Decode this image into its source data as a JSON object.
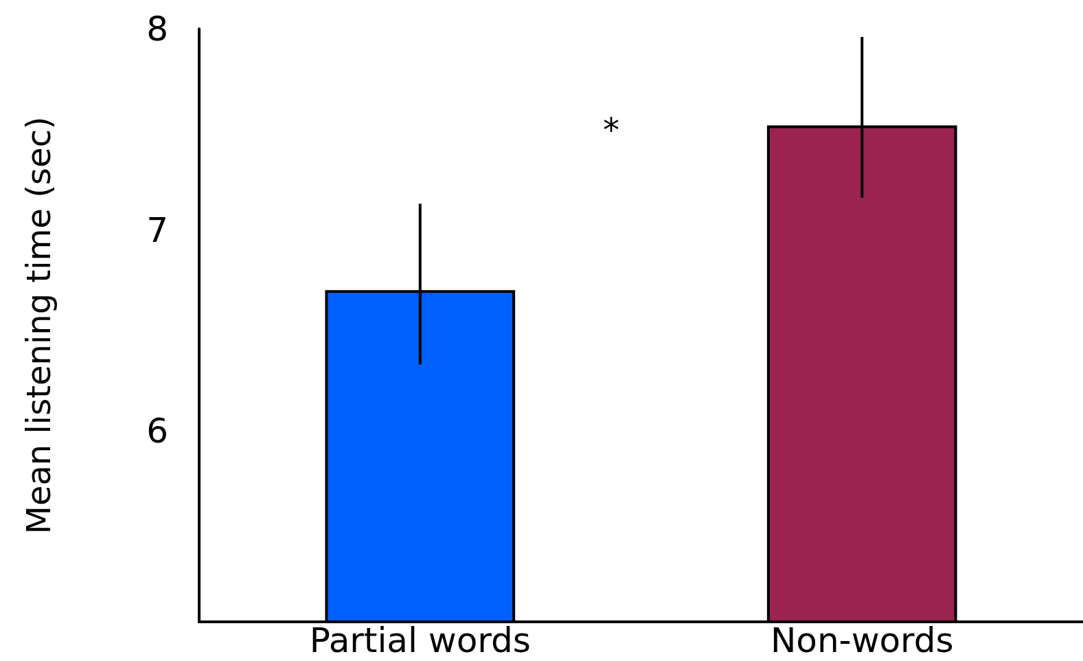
{
  "chart_data": {
    "type": "bar",
    "ylabel": "Mean listening time (sec)",
    "categories": [
      "Partial words",
      "Non-words"
    ],
    "values": [
      6.7,
      7.52
    ],
    "colors": [
      "#0060ff",
      "#9a2350"
    ],
    "errors": [
      [
        6.33,
        7.13
      ],
      [
        7.16,
        7.96
      ]
    ],
    "ylim": [
      5.05,
      8
    ],
    "yticks": [
      6,
      7,
      8
    ],
    "grid": false,
    "annotations": [
      "*"
    ]
  }
}
